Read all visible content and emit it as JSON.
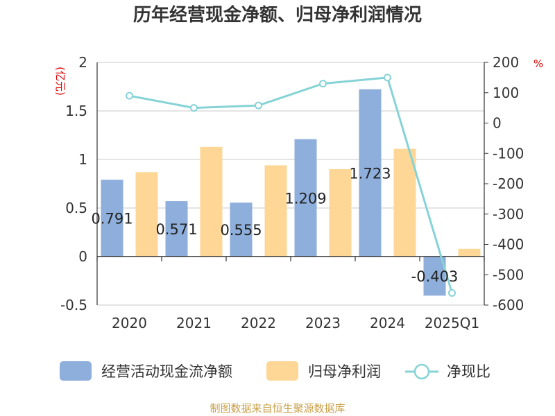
{
  "title": "历年经营现金净额、归母净利润情况",
  "source": "制图数据来自恒生聚源数据库",
  "left_axis_unit": "(亿元)",
  "right_axis_unit": "%",
  "legend": {
    "cash_flow": "经营活动现金流净额",
    "net_profit": "归母净利润",
    "ratio": "净现比"
  },
  "colors": {
    "cash_flow": "#8eaedb",
    "net_profit": "#fed797",
    "ratio": "#86d3d6",
    "grid": "#c8c8c8"
  },
  "chart_data": {
    "type": "bar",
    "title": "历年经营现金净额、归母净利润情况",
    "categories": [
      "2020",
      "2021",
      "2022",
      "2023",
      "2024",
      "2025Q1"
    ],
    "series": [
      {
        "name": "经营活动现金流净额",
        "type": "bar",
        "axis": "left",
        "values": [
          0.791,
          0.571,
          0.555,
          1.209,
          1.723,
          -0.403
        ],
        "data_labels": [
          "0.791",
          "0.571",
          "0.555",
          "1.209",
          "1.723",
          "-0.403"
        ]
      },
      {
        "name": "归母净利润",
        "type": "bar",
        "axis": "left",
        "values": [
          0.87,
          1.13,
          0.94,
          0.9,
          1.11,
          0.08
        ]
      },
      {
        "name": "净现比",
        "type": "line",
        "axis": "right",
        "values": [
          90,
          50,
          58,
          130,
          150,
          -560
        ]
      }
    ],
    "left_axis": {
      "label": "(亿元)",
      "ylim": [
        -0.5,
        2
      ],
      "ticks": [
        2,
        1.5,
        1,
        0.5,
        0,
        -0.5
      ],
      "tick_labels": [
        "2",
        "1.5",
        "1",
        "0.5",
        "0",
        "-0.5"
      ]
    },
    "right_axis": {
      "label": "%",
      "ylim": [
        -600,
        200
      ],
      "ticks": [
        200,
        100,
        0,
        -100,
        -200,
        -300,
        -400,
        -500,
        -600
      ],
      "tick_labels": [
        "200",
        "100",
        "0",
        "-100",
        "-200",
        "-300",
        "-400",
        "-500",
        "-600"
      ]
    },
    "grid": true,
    "legend_position": "bottom"
  }
}
